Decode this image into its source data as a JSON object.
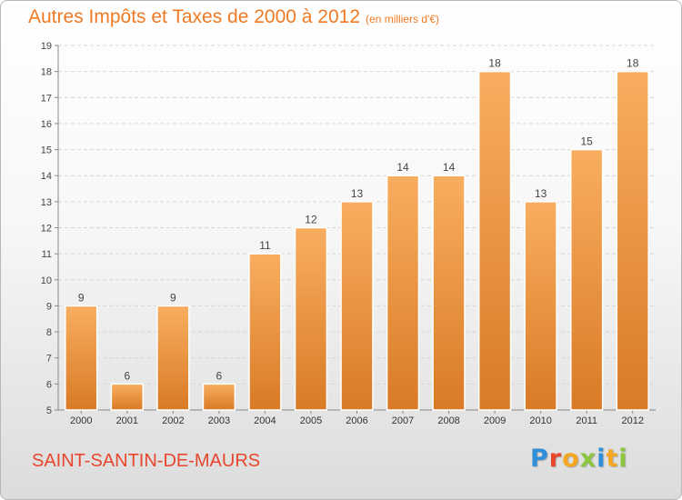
{
  "header": {
    "title": "Autres Impôts et Taxes de 2000 à 2012",
    "subtitle": "(en milliers d'€)"
  },
  "footer": {
    "commune": "SAINT-SANTIN-DE-MAURS",
    "brand_letters": [
      {
        "ch": "P",
        "color": "#2f8fd8"
      },
      {
        "ch": "r",
        "color": "#e8462d"
      },
      {
        "ch": "o",
        "color": "#f5a623"
      },
      {
        "ch": "x",
        "color": "#8cc63f"
      },
      {
        "ch": "i",
        "color": "#2f8fd8"
      },
      {
        "ch": "t",
        "color": "#f5a623"
      },
      {
        "ch": "i",
        "color": "#8cc63f"
      }
    ]
  },
  "colors": {
    "accent": "#f07a23",
    "bar_top": "#f8ae5f",
    "bar_bottom": "#d97a26",
    "commune": "#e8462d"
  },
  "chart_data": {
    "type": "bar",
    "categories": [
      "2000",
      "2001",
      "2002",
      "2003",
      "2004",
      "2005",
      "2006",
      "2007",
      "2008",
      "2009",
      "2010",
      "2011",
      "2012"
    ],
    "values": [
      9,
      6,
      9,
      6,
      11,
      12,
      13,
      14,
      14,
      18,
      13,
      15,
      18
    ],
    "ylim": [
      5,
      19
    ],
    "yticks": [
      5,
      6,
      7,
      8,
      9,
      10,
      11,
      12,
      13,
      14,
      15,
      16,
      17,
      18,
      19
    ],
    "grid": true
  }
}
